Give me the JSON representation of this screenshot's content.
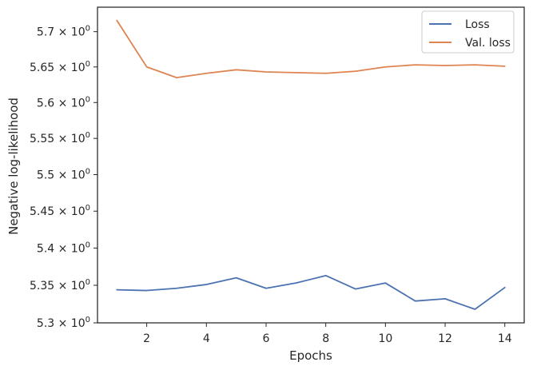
{
  "chart_data": {
    "type": "line",
    "xlabel": "Epochs",
    "ylabel": "Negative log-likelihood",
    "xlim": [
      0.35,
      14.65
    ],
    "ylim": [
      5.3,
      5.735
    ],
    "y_scale": "log",
    "grid": false,
    "legend_position": "top-right",
    "x_ticks": [
      2,
      4,
      6,
      8,
      10,
      12,
      14
    ],
    "y_ticks": [
      5.3,
      5.35,
      5.4,
      5.45,
      5.5,
      5.55,
      5.6,
      5.65,
      5.7
    ],
    "y_tick_labels": [
      {
        "mantissa": "5.3",
        "sep": " × 10",
        "exp": "0"
      },
      {
        "mantissa": "5.35",
        "sep": " × 10",
        "exp": "0"
      },
      {
        "mantissa": "5.4",
        "sep": " × 10",
        "exp": "0"
      },
      {
        "mantissa": "5.45",
        "sep": " × 10",
        "exp": "0"
      },
      {
        "mantissa": "5.5",
        "sep": " × 10",
        "exp": "0"
      },
      {
        "mantissa": "5.55",
        "sep": " × 10",
        "exp": "0"
      },
      {
        "mantissa": "5.6",
        "sep": " × 10",
        "exp": "0"
      },
      {
        "mantissa": "5.65",
        "sep": " × 10",
        "exp": "0"
      },
      {
        "mantissa": "5.7",
        "sep": " × 10",
        "exp": "0"
      }
    ],
    "x": [
      1,
      2,
      3,
      4,
      5,
      6,
      7,
      8,
      9,
      10,
      11,
      12,
      13,
      14
    ],
    "series": [
      {
        "name": "Loss",
        "color": "#4c72b0",
        "values": [
          5.344,
          5.343,
          5.346,
          5.351,
          5.36,
          5.346,
          5.353,
          5.363,
          5.345,
          5.353,
          5.329,
          5.332,
          5.318,
          5.347
        ]
      },
      {
        "name": "Val. loss",
        "color": "#dd8452",
        "values": [
          5.716,
          5.65,
          5.635,
          5.641,
          5.646,
          5.643,
          5.642,
          5.641,
          5.644,
          5.65,
          5.653,
          5.652,
          5.653,
          5.651
        ]
      }
    ]
  }
}
